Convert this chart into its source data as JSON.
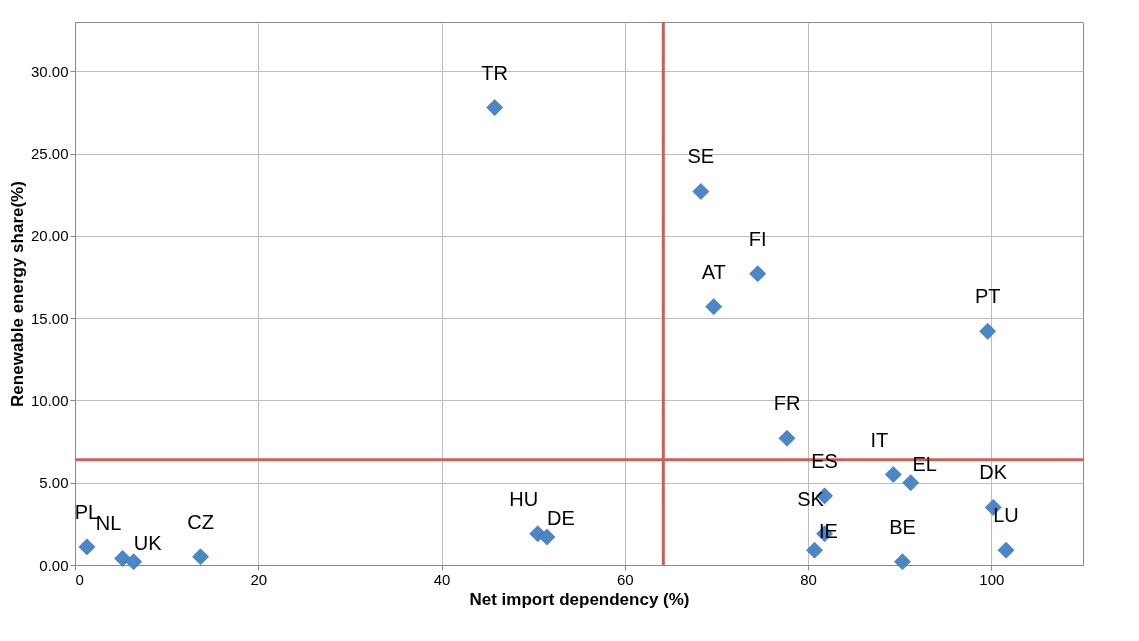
{
  "chart_data": {
    "type": "scatter",
    "xlabel": "Net import dependency (%)",
    "ylabel": "Renewable energy share(%)",
    "x": [
      45.8,
      68.3,
      74.5,
      69.7,
      99.6,
      77.7,
      89.3,
      91.2,
      81.8,
      81.8,
      80.7,
      90.3,
      100.2,
      101.6,
      1.3,
      5.2,
      6.4,
      13.7,
      50.5,
      51.5
    ],
    "series": [
      {
        "color": "#4a86c8",
        "values": [
          27.8,
          22.7,
          17.7,
          15.7,
          14.2,
          7.7,
          5.5,
          5.0,
          4.2,
          1.9,
          0.9,
          0.2,
          3.5,
          0.9,
          1.1,
          0.4,
          0.2,
          0.5,
          1.9,
          1.7
        ]
      }
    ],
    "marker": "diamond",
    "xlim": [
      0,
      110
    ],
    "ylim": [
      0,
      33
    ],
    "xticks": [
      0,
      20,
      40,
      60,
      80,
      100
    ],
    "yticks": [
      {
        "value": 0,
        "label": "0.00"
      },
      {
        "value": 5,
        "label": "5.00"
      },
      {
        "value": 10,
        "label": "10.00"
      },
      {
        "value": 15,
        "label": "15.00"
      },
      {
        "value": 20,
        "label": "20.00"
      },
      {
        "value": 25,
        "label": "25.00"
      },
      {
        "value": 30,
        "label": "30.00"
      }
    ],
    "grid": true,
    "ref_lines": [
      {
        "axis": "x",
        "value": 64.2,
        "color": "#cc5f5a"
      },
      {
        "axis": "y",
        "value": 6.4,
        "color": "#cc5f5a"
      }
    ],
    "annotations": [
      {
        "text": "TR",
        "x": 45.8,
        "y": 27.8
      },
      {
        "text": "SE",
        "x": 68.3,
        "y": 22.7
      },
      {
        "text": "FI",
        "x": 74.5,
        "y": 17.7
      },
      {
        "text": "AT",
        "x": 69.7,
        "y": 15.7
      },
      {
        "text": "PT",
        "x": 99.6,
        "y": 14.2
      },
      {
        "text": "FR",
        "x": 77.7,
        "y": 7.7
      },
      {
        "text": "IT",
        "x": 89.3,
        "y": 5.5
      },
      {
        "text": "EL",
        "x": 91.2,
        "y": 5.0
      },
      {
        "text": "ES",
        "x": 81.8,
        "y": 4.2
      },
      {
        "text": "SK",
        "x": 81.8,
        "y": 1.9
      },
      {
        "text": "IE",
        "x": 80.7,
        "y": 0.9
      },
      {
        "text": "BE",
        "x": 90.3,
        "y": 0.2
      },
      {
        "text": "DK",
        "x": 100.2,
        "y": 3.5
      },
      {
        "text": "LU",
        "x": 101.6,
        "y": 0.9
      },
      {
        "text": "PL",
        "x": 1.3,
        "y": 1.1
      },
      {
        "text": "NL",
        "x": 5.2,
        "y": 0.4
      },
      {
        "text": "UK",
        "x": 6.4,
        "y": 0.2
      },
      {
        "text": "CZ",
        "x": 13.7,
        "y": 0.5
      },
      {
        "text": "HU",
        "x": 50.5,
        "y": 1.9
      },
      {
        "text": "DE",
        "x": 51.5,
        "y": 1.7
      }
    ]
  }
}
